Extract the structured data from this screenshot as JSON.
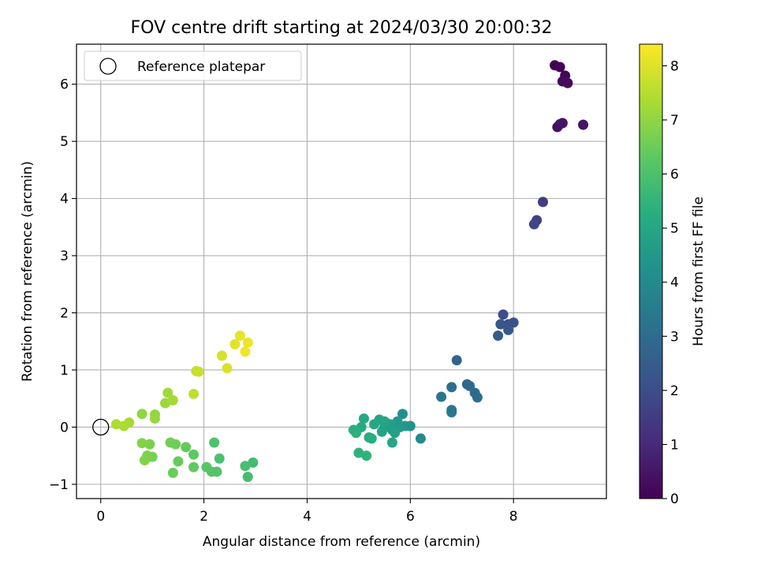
{
  "chart_data": {
    "type": "scatter",
    "title": "FOV centre drift starting at 2024/03/30 20:00:32",
    "xlabel": "Angular distance from reference (arcmin)",
    "ylabel": "Rotation from reference (arcmin)",
    "xlim": [
      -0.47,
      9.8
    ],
    "ylim": [
      -1.25,
      6.7
    ],
    "xticks": [
      0,
      2,
      4,
      6,
      8
    ],
    "yticks": [
      -1,
      0,
      1,
      2,
      3,
      4,
      5,
      6
    ],
    "grid": true,
    "legend": {
      "placement": "top-left",
      "entries": [
        "Reference platepar"
      ]
    },
    "reference_point": {
      "x": 0,
      "y": 0,
      "label": "Reference platepar"
    },
    "colorbar": {
      "label": "Hours from first FF file",
      "range": [
        0,
        8.4
      ],
      "ticks": [
        0,
        1,
        2,
        3,
        4,
        5,
        6,
        7,
        8
      ],
      "colormap": "viridis"
    },
    "points": [
      {
        "x": 8.8,
        "y": 6.33,
        "t": 0.0
      },
      {
        "x": 8.9,
        "y": 6.3,
        "t": 0.05
      },
      {
        "x": 9.0,
        "y": 6.15,
        "t": 0.1
      },
      {
        "x": 8.95,
        "y": 6.05,
        "t": 0.15
      },
      {
        "x": 9.05,
        "y": 6.02,
        "t": 0.2
      },
      {
        "x": 9.0,
        "y": 6.05,
        "t": 0.25
      },
      {
        "x": 8.85,
        "y": 5.25,
        "t": 0.35
      },
      {
        "x": 8.9,
        "y": 5.3,
        "t": 0.4
      },
      {
        "x": 8.95,
        "y": 5.32,
        "t": 0.45
      },
      {
        "x": 9.35,
        "y": 5.29,
        "t": 0.5
      },
      {
        "x": 8.57,
        "y": 3.94,
        "t": 1.5
      },
      {
        "x": 8.45,
        "y": 3.62,
        "t": 1.65
      },
      {
        "x": 8.4,
        "y": 3.55,
        "t": 1.75
      },
      {
        "x": 7.8,
        "y": 1.97,
        "t": 2.05
      },
      {
        "x": 7.9,
        "y": 1.8,
        "t": 2.15
      },
      {
        "x": 8.0,
        "y": 1.83,
        "t": 2.2
      },
      {
        "x": 7.75,
        "y": 1.8,
        "t": 2.25
      },
      {
        "x": 7.9,
        "y": 1.7,
        "t": 2.3
      },
      {
        "x": 7.7,
        "y": 1.6,
        "t": 2.4
      },
      {
        "x": 6.9,
        "y": 1.17,
        "t": 2.75
      },
      {
        "x": 7.1,
        "y": 0.75,
        "t": 2.85
      },
      {
        "x": 7.15,
        "y": 0.72,
        "t": 2.9
      },
      {
        "x": 7.25,
        "y": 0.6,
        "t": 2.95
      },
      {
        "x": 7.3,
        "y": 0.52,
        "t": 3.0
      },
      {
        "x": 6.8,
        "y": 0.7,
        "t": 3.1
      },
      {
        "x": 6.6,
        "y": 0.53,
        "t": 3.3
      },
      {
        "x": 6.8,
        "y": 0.3,
        "t": 3.35
      },
      {
        "x": 6.8,
        "y": 0.26,
        "t": 3.4
      },
      {
        "x": 6.2,
        "y": -0.2,
        "t": 4.0
      },
      {
        "x": 5.85,
        "y": 0.23,
        "t": 4.2
      },
      {
        "x": 6.0,
        "y": 0.02,
        "t": 4.3
      },
      {
        "x": 5.9,
        "y": 0.02,
        "t": 4.4
      },
      {
        "x": 5.75,
        "y": 0.1,
        "t": 4.5
      },
      {
        "x": 5.7,
        "y": 0.05,
        "t": 4.55
      },
      {
        "x": 5.8,
        "y": 0.0,
        "t": 4.6
      },
      {
        "x": 5.65,
        "y": -0.05,
        "t": 4.65
      },
      {
        "x": 5.6,
        "y": 0.05,
        "t": 4.7
      },
      {
        "x": 5.5,
        "y": 0.0,
        "t": 4.75
      },
      {
        "x": 5.7,
        "y": -0.1,
        "t": 4.8
      },
      {
        "x": 5.45,
        "y": -0.08,
        "t": 4.85
      },
      {
        "x": 5.4,
        "y": 0.13,
        "t": 4.9
      },
      {
        "x": 5.5,
        "y": 0.1,
        "t": 4.95
      },
      {
        "x": 5.65,
        "y": -0.27,
        "t": 5.0
      },
      {
        "x": 5.3,
        "y": 0.05,
        "t": 5.05
      },
      {
        "x": 5.1,
        "y": 0.15,
        "t": 5.1
      },
      {
        "x": 5.05,
        "y": 0.0,
        "t": 5.15
      },
      {
        "x": 5.2,
        "y": -0.18,
        "t": 5.2
      },
      {
        "x": 5.25,
        "y": -0.2,
        "t": 5.25
      },
      {
        "x": 4.9,
        "y": -0.05,
        "t": 5.3
      },
      {
        "x": 4.95,
        "y": -0.1,
        "t": 5.35
      },
      {
        "x": 5.0,
        "y": -0.45,
        "t": 5.4
      },
      {
        "x": 5.15,
        "y": -0.5,
        "t": 5.45
      },
      {
        "x": 2.95,
        "y": -0.62,
        "t": 5.8
      },
      {
        "x": 2.85,
        "y": -0.87,
        "t": 5.85
      },
      {
        "x": 2.8,
        "y": -0.68,
        "t": 5.9
      },
      {
        "x": 2.3,
        "y": -0.55,
        "t": 6.0
      },
      {
        "x": 2.2,
        "y": -0.27,
        "t": 6.05
      },
      {
        "x": 2.25,
        "y": -0.78,
        "t": 6.1
      },
      {
        "x": 2.15,
        "y": -0.78,
        "t": 6.15
      },
      {
        "x": 2.05,
        "y": -0.7,
        "t": 6.2
      },
      {
        "x": 1.8,
        "y": -0.48,
        "t": 6.3
      },
      {
        "x": 1.8,
        "y": -0.7,
        "t": 6.35
      },
      {
        "x": 1.65,
        "y": -0.35,
        "t": 6.4
      },
      {
        "x": 1.5,
        "y": -0.6,
        "t": 6.45
      },
      {
        "x": 1.4,
        "y": -0.8,
        "t": 6.5
      },
      {
        "x": 1.45,
        "y": -0.3,
        "t": 6.55
      },
      {
        "x": 1.35,
        "y": -0.27,
        "t": 6.6
      },
      {
        "x": 1.0,
        "y": -0.52,
        "t": 6.65
      },
      {
        "x": 0.95,
        "y": -0.3,
        "t": 6.7
      },
      {
        "x": 0.9,
        "y": -0.5,
        "t": 6.75
      },
      {
        "x": 0.85,
        "y": -0.58,
        "t": 6.8
      },
      {
        "x": 0.8,
        "y": -0.28,
        "t": 6.85
      },
      {
        "x": 0.8,
        "y": 0.23,
        "t": 7.0
      },
      {
        "x": 1.05,
        "y": 0.22,
        "t": 7.05
      },
      {
        "x": 1.05,
        "y": 0.15,
        "t": 7.1
      },
      {
        "x": 1.25,
        "y": 0.42,
        "t": 7.15
      },
      {
        "x": 1.3,
        "y": 0.6,
        "t": 7.2
      },
      {
        "x": 1.4,
        "y": 0.47,
        "t": 7.25
      },
      {
        "x": 0.55,
        "y": 0.08,
        "t": 7.3
      },
      {
        "x": 0.45,
        "y": 0.02,
        "t": 7.35
      },
      {
        "x": 0.3,
        "y": 0.05,
        "t": 7.4
      },
      {
        "x": 1.8,
        "y": 0.58,
        "t": 7.6
      },
      {
        "x": 1.85,
        "y": 0.98,
        "t": 7.7
      },
      {
        "x": 1.9,
        "y": 0.97,
        "t": 7.75
      },
      {
        "x": 2.35,
        "y": 1.25,
        "t": 7.9
      },
      {
        "x": 2.45,
        "y": 1.03,
        "t": 7.95
      },
      {
        "x": 2.6,
        "y": 1.45,
        "t": 8.05
      },
      {
        "x": 2.7,
        "y": 1.6,
        "t": 8.1
      },
      {
        "x": 2.85,
        "y": 1.48,
        "t": 8.2
      },
      {
        "x": 2.8,
        "y": 1.32,
        "t": 8.25
      }
    ]
  }
}
